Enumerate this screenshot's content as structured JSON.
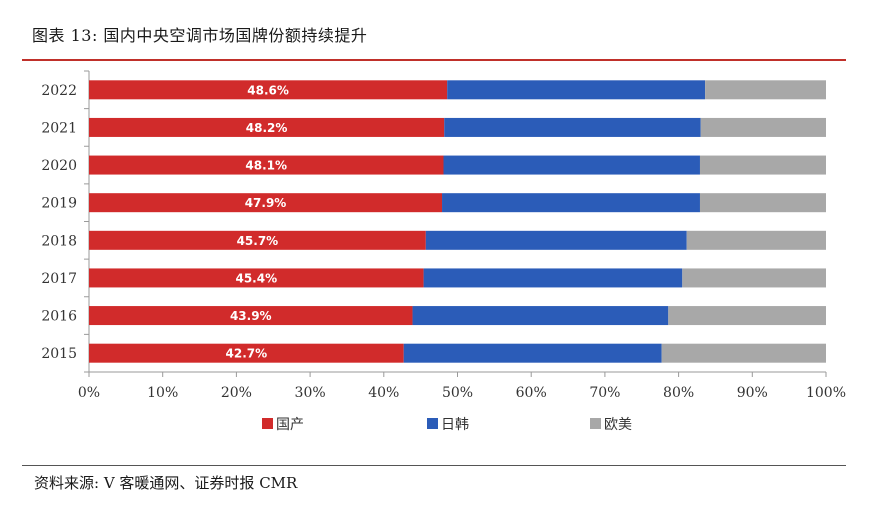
{
  "header": {
    "title": "图表 13:  国内中央空调市场国牌份额持续提升"
  },
  "footer": {
    "source": "资料来源:  V 客暖通网、证券时报 CMR"
  },
  "colors": {
    "domestic": "#d12b2b",
    "jpkr": "#2b5cb8",
    "euus": "#a8a8a8",
    "rule": "#c0302a"
  },
  "chart_data": {
    "type": "bar",
    "orientation": "horizontal",
    "stacked": true,
    "percent": true,
    "categories": [
      "2022",
      "2021",
      "2020",
      "2019",
      "2018",
      "2017",
      "2016",
      "2015"
    ],
    "series": [
      {
        "name": "国产",
        "values": [
          48.6,
          48.2,
          48.1,
          47.9,
          45.7,
          45.4,
          43.9,
          42.7
        ],
        "labels": [
          "48.6%",
          "48.2%",
          "48.1%",
          "47.9%",
          "45.7%",
          "45.4%",
          "43.9%",
          "42.7%"
        ]
      },
      {
        "name": "日韩",
        "values": [
          35.0,
          34.8,
          34.8,
          35.0,
          35.4,
          35.1,
          34.7,
          35.0
        ]
      },
      {
        "name": "欧美",
        "values": [
          16.4,
          17.0,
          17.1,
          17.1,
          18.9,
          19.5,
          21.4,
          22.3
        ]
      }
    ],
    "xlim": [
      0,
      100
    ],
    "xticks": [
      "0%",
      "10%",
      "20%",
      "30%",
      "40%",
      "50%",
      "60%",
      "70%",
      "80%",
      "90%",
      "100%"
    ],
    "legend_position": "bottom"
  }
}
